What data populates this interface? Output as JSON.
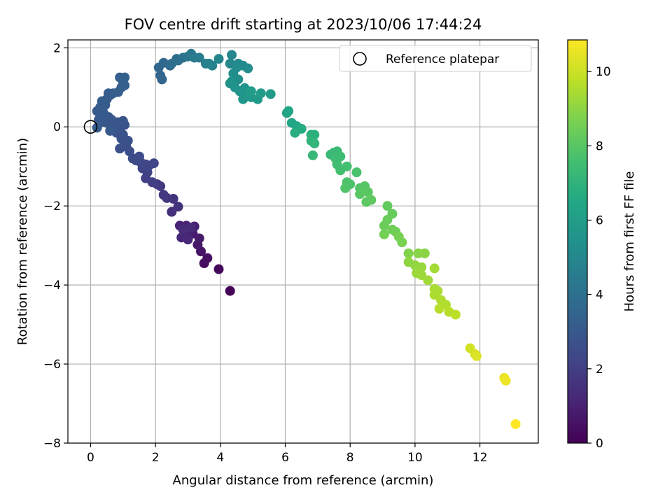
{
  "chart_data": {
    "type": "scatter",
    "title": "FOV centre drift starting at 2023/10/06 17:44:24",
    "xlabel": "Angular distance from reference (arcmin)",
    "ylabel": "Rotation from reference (arcmin)",
    "colorbar_label": "Hours from first FF file",
    "xlim": [
      -0.7,
      13.8
    ],
    "ylim": [
      -8.0,
      2.2
    ],
    "clim": [
      0,
      10.85
    ],
    "x_ticks": [
      0,
      2,
      4,
      6,
      8,
      10,
      12
    ],
    "y_ticks": [
      -8,
      -6,
      -4,
      -2,
      0,
      2
    ],
    "colorbar_ticks": [
      0,
      2,
      4,
      6,
      8,
      10
    ],
    "grid": true,
    "colormap": "viridis",
    "legend": {
      "placement": "top-right",
      "entries": [
        "Reference platepar"
      ]
    },
    "reference_point": {
      "x": 0,
      "y": 0
    },
    "points": [
      [
        4.3,
        -4.15,
        0.05
      ],
      [
        3.95,
        -3.6,
        0.25
      ],
      [
        3.5,
        -3.45,
        0.4
      ],
      [
        3.6,
        -3.32,
        0.5
      ],
      [
        3.4,
        -3.15,
        0.6
      ],
      [
        3.3,
        -2.98,
        0.7
      ],
      [
        3.35,
        -2.82,
        0.8
      ],
      [
        3.15,
        -2.7,
        0.85
      ],
      [
        2.9,
        -2.6,
        0.9
      ],
      [
        3.05,
        -2.58,
        0.95
      ],
      [
        3.2,
        -2.52,
        1.0
      ],
      [
        2.95,
        -2.5,
        1.05
      ],
      [
        2.75,
        -2.5,
        1.1
      ],
      [
        2.95,
        -2.72,
        1.15
      ],
      [
        2.8,
        -2.8,
        1.2
      ],
      [
        3.0,
        -2.85,
        1.25
      ],
      [
        3.1,
        -2.55,
        1.3
      ],
      [
        2.85,
        -2.6,
        1.35
      ],
      [
        2.5,
        -2.15,
        1.45
      ],
      [
        2.7,
        -2.02,
        1.55
      ],
      [
        2.55,
        -1.82,
        1.6
      ],
      [
        2.35,
        -1.8,
        1.7
      ],
      [
        2.25,
        -1.72,
        1.75
      ],
      [
        2.15,
        -1.5,
        1.85
      ],
      [
        2.05,
        -1.45,
        1.9
      ],
      [
        1.9,
        -1.4,
        2.0
      ],
      [
        1.7,
        -1.3,
        2.05
      ],
      [
        1.75,
        -1.15,
        2.1
      ],
      [
        1.6,
        -1.05,
        2.15
      ],
      [
        1.8,
        -0.98,
        2.2
      ],
      [
        1.95,
        -0.92,
        2.25
      ],
      [
        1.7,
        -0.95,
        2.3
      ],
      [
        1.55,
        -0.9,
        2.35
      ],
      [
        1.4,
        -0.85,
        2.4
      ],
      [
        1.3,
        -0.8,
        2.45
      ],
      [
        1.5,
        -0.75,
        2.5
      ],
      [
        1.2,
        -0.62,
        2.55
      ],
      [
        1.1,
        -0.5,
        2.6
      ],
      [
        0.9,
        -0.55,
        2.62
      ],
      [
        1.05,
        -0.4,
        2.65
      ],
      [
        1.15,
        -0.35,
        2.68
      ],
      [
        0.95,
        -0.3,
        2.7
      ],
      [
        1.0,
        -0.2,
        2.72
      ],
      [
        0.8,
        -0.15,
        2.74
      ],
      [
        0.7,
        -0.05,
        2.76
      ],
      [
        0.9,
        -0.08,
        2.78
      ],
      [
        1.05,
        0.05,
        2.8
      ],
      [
        1.0,
        0.15,
        2.82
      ],
      [
        0.85,
        0.12,
        2.84
      ],
      [
        0.75,
        0.02,
        2.86
      ],
      [
        0.6,
        0.05,
        2.88
      ],
      [
        0.5,
        0.1,
        2.9
      ],
      [
        0.65,
        0.18,
        2.92
      ],
      [
        0.55,
        0.25,
        2.94
      ],
      [
        0.45,
        0.2,
        2.96
      ],
      [
        0.35,
        0.12,
        2.98
      ],
      [
        0.25,
        0.18,
        3.0
      ],
      [
        0.3,
        0.3,
        3.02
      ],
      [
        0.4,
        0.35,
        3.04
      ],
      [
        0.2,
        0.4,
        3.06
      ],
      [
        0.3,
        0.5,
        3.08
      ],
      [
        0.45,
        0.55,
        3.1
      ],
      [
        0.35,
        0.65,
        3.12
      ],
      [
        0.5,
        0.7,
        3.14
      ],
      [
        0.6,
        0.8,
        3.16
      ],
      [
        0.55,
        0.85,
        3.18
      ],
      [
        0.7,
        0.85,
        3.2
      ],
      [
        0.85,
        0.88,
        3.22
      ],
      [
        0.95,
        1.0,
        3.24
      ],
      [
        1.05,
        1.05,
        3.26
      ],
      [
        1.0,
        1.15,
        3.28
      ],
      [
        0.9,
        1.25,
        3.3
      ],
      [
        1.05,
        1.25,
        3.32
      ],
      [
        0.2,
        -0.02,
        3.15
      ],
      [
        0.6,
        -0.1,
        3.0
      ],
      [
        2.2,
        1.2,
        3.5
      ],
      [
        2.15,
        1.3,
        3.55
      ],
      [
        2.1,
        1.5,
        3.6
      ],
      [
        2.25,
        1.62,
        3.65
      ],
      [
        2.45,
        1.55,
        3.75
      ],
      [
        2.5,
        1.6,
        3.85
      ],
      [
        2.7,
        1.68,
        3.95
      ],
      [
        2.65,
        1.72,
        4.0
      ],
      [
        2.85,
        1.75,
        4.1
      ],
      [
        3.0,
        1.78,
        4.2
      ],
      [
        3.1,
        1.85,
        4.3
      ],
      [
        3.2,
        1.75,
        4.4
      ],
      [
        3.35,
        1.75,
        4.5
      ],
      [
        3.55,
        1.6,
        4.6
      ],
      [
        3.75,
        1.55,
        4.7
      ],
      [
        3.65,
        1.6,
        4.8
      ],
      [
        3.95,
        1.72,
        4.9
      ],
      [
        4.35,
        1.82,
        5.0
      ],
      [
        4.3,
        1.6,
        5.05
      ],
      [
        4.55,
        1.6,
        5.1
      ],
      [
        4.7,
        1.55,
        5.15
      ],
      [
        4.85,
        1.48,
        5.2
      ],
      [
        4.5,
        1.5,
        5.25
      ],
      [
        4.4,
        1.35,
        5.3
      ],
      [
        4.55,
        1.2,
        5.35
      ],
      [
        4.35,
        1.15,
        5.4
      ],
      [
        4.45,
        1.0,
        5.45
      ],
      [
        4.3,
        1.1,
        5.5
      ],
      [
        4.6,
        0.9,
        5.55
      ],
      [
        4.75,
        0.98,
        5.6
      ],
      [
        4.8,
        0.78,
        5.65
      ],
      [
        4.7,
        0.7,
        5.7
      ],
      [
        4.95,
        0.75,
        5.75
      ],
      [
        5.15,
        0.7,
        5.8
      ],
      [
        5.25,
        0.85,
        5.85
      ],
      [
        5.55,
        0.83,
        5.9
      ],
      [
        4.95,
        0.9,
        5.95
      ],
      [
        6.05,
        0.35,
        6.2
      ],
      [
        6.1,
        0.4,
        6.3
      ],
      [
        6.2,
        0.1,
        6.4
      ],
      [
        6.35,
        0.02,
        6.5
      ],
      [
        6.5,
        -0.05,
        6.6
      ],
      [
        6.3,
        -0.15,
        6.7
      ],
      [
        6.8,
        -0.2,
        6.8
      ],
      [
        6.9,
        -0.2,
        6.9
      ],
      [
        6.8,
        -0.35,
        7.0
      ],
      [
        6.9,
        -0.42,
        7.1
      ],
      [
        6.85,
        -0.72,
        7.2
      ],
      [
        7.4,
        -0.7,
        7.25
      ],
      [
        7.5,
        -0.65,
        7.3
      ],
      [
        7.6,
        -0.62,
        7.35
      ],
      [
        7.55,
        -0.8,
        7.4
      ],
      [
        7.7,
        -0.75,
        7.45
      ],
      [
        7.6,
        -0.95,
        7.5
      ],
      [
        7.7,
        -1.1,
        7.55
      ],
      [
        7.9,
        -1.0,
        7.6
      ],
      [
        8.2,
        -1.15,
        7.7
      ],
      [
        7.9,
        -1.4,
        7.75
      ],
      [
        8.0,
        -1.45,
        7.8
      ],
      [
        7.85,
        -1.55,
        7.85
      ],
      [
        8.3,
        -1.55,
        7.9
      ],
      [
        8.45,
        -1.5,
        7.95
      ],
      [
        8.3,
        -1.7,
        8.0
      ],
      [
        8.55,
        -1.65,
        8.05
      ],
      [
        8.5,
        -1.9,
        8.1
      ],
      [
        8.65,
        -1.85,
        8.15
      ],
      [
        9.15,
        -2.0,
        8.2
      ],
      [
        9.3,
        -2.2,
        8.3
      ],
      [
        9.15,
        -2.35,
        8.35
      ],
      [
        9.05,
        -2.5,
        8.4
      ],
      [
        9.3,
        -2.6,
        8.45
      ],
      [
        9.4,
        -2.65,
        8.5
      ],
      [
        9.05,
        -2.72,
        8.55
      ],
      [
        9.5,
        -2.78,
        8.6
      ],
      [
        9.6,
        -2.92,
        8.65
      ],
      [
        9.8,
        -3.2,
        8.8
      ],
      [
        10.1,
        -3.2,
        8.9
      ],
      [
        10.3,
        -3.2,
        8.95
      ],
      [
        9.8,
        -3.42,
        9.0
      ],
      [
        10.0,
        -3.5,
        9.05
      ],
      [
        10.1,
        -3.6,
        9.1
      ],
      [
        10.2,
        -3.55,
        9.15
      ],
      [
        10.05,
        -3.7,
        9.2
      ],
      [
        10.2,
        -3.75,
        9.25
      ],
      [
        10.4,
        -3.88,
        9.3
      ],
      [
        10.6,
        -3.58,
        9.35
      ],
      [
        10.6,
        -4.1,
        9.4
      ],
      [
        10.7,
        -4.15,
        9.45
      ],
      [
        10.6,
        -4.25,
        9.5
      ],
      [
        10.8,
        -4.38,
        9.55
      ],
      [
        10.95,
        -4.5,
        9.6
      ],
      [
        10.75,
        -4.6,
        9.65
      ],
      [
        11.05,
        -4.68,
        9.7
      ],
      [
        11.25,
        -4.75,
        9.75
      ],
      [
        11.7,
        -5.6,
        10.1
      ],
      [
        11.85,
        -5.75,
        10.2
      ],
      [
        11.9,
        -5.8,
        10.3
      ],
      [
        12.75,
        -6.35,
        10.5
      ],
      [
        12.8,
        -6.42,
        10.6
      ],
      [
        13.1,
        -7.52,
        10.85
      ]
    ]
  }
}
